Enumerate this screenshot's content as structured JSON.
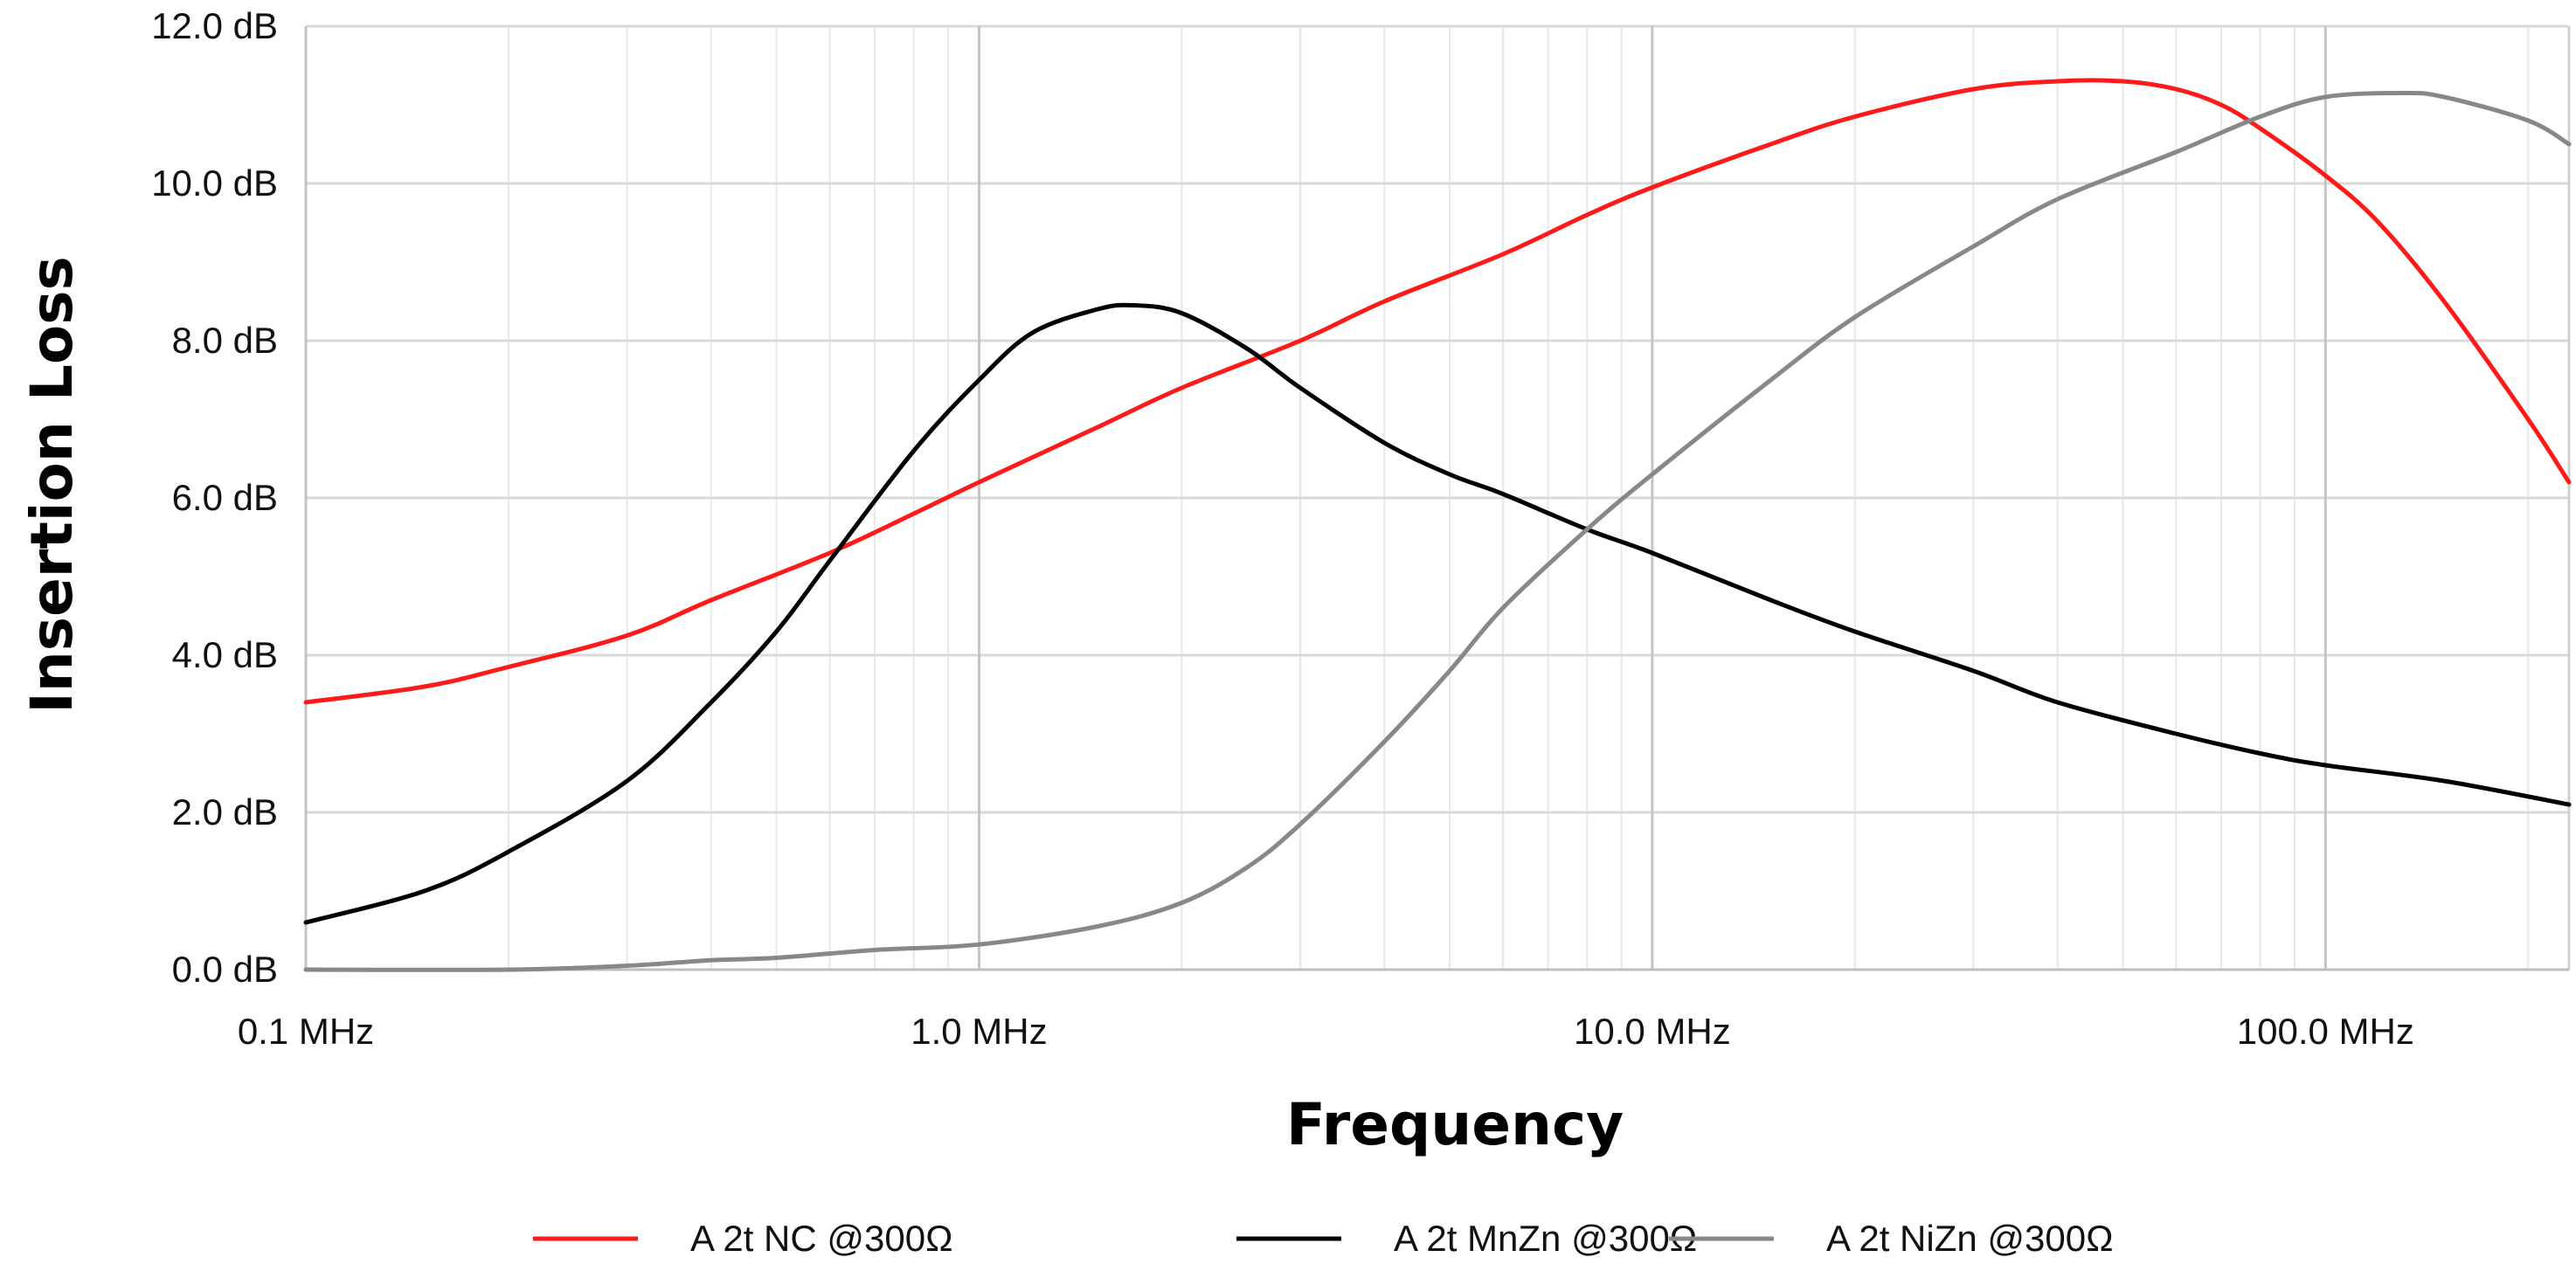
{
  "chart_data": {
    "type": "line",
    "title": "",
    "xlabel": "Frequency",
    "ylabel": "Insertion Loss",
    "x_scale": "log",
    "xlim": [
      0.1,
      230
    ],
    "ylim": [
      0,
      12
    ],
    "grid": true,
    "legend_position": "bottom",
    "x_ticks": [
      {
        "value": 0.1,
        "label": "0.1 MHz"
      },
      {
        "value": 1,
        "label": "1.0 MHz"
      },
      {
        "value": 10,
        "label": "10.0 MHz"
      },
      {
        "value": 100,
        "label": "100.0 MHz"
      }
    ],
    "y_ticks": [
      {
        "value": 0,
        "label": "0.0 dB"
      },
      {
        "value": 2,
        "label": "2.0 dB"
      },
      {
        "value": 4,
        "label": "4.0 dB"
      },
      {
        "value": 6,
        "label": "6.0 dB"
      },
      {
        "value": 8,
        "label": "8.0 dB"
      },
      {
        "value": 10,
        "label": "10.0 dB"
      },
      {
        "value": 12,
        "label": "12.0 dB"
      }
    ],
    "series": [
      {
        "name": "A 2t NC @300Ω",
        "color": "#ff1a1a",
        "points": [
          [
            0.1,
            3.4
          ],
          [
            0.15,
            3.6
          ],
          [
            0.2,
            3.85
          ],
          [
            0.3,
            4.25
          ],
          [
            0.4,
            4.7
          ],
          [
            0.6,
            5.3
          ],
          [
            0.8,
            5.8
          ],
          [
            1.0,
            6.2
          ],
          [
            1.5,
            6.9
          ],
          [
            2.0,
            7.4
          ],
          [
            3.0,
            8.0
          ],
          [
            4.0,
            8.5
          ],
          [
            6.0,
            9.1
          ],
          [
            8.0,
            9.6
          ],
          [
            10,
            9.95
          ],
          [
            15,
            10.5
          ],
          [
            20,
            10.85
          ],
          [
            30,
            11.2
          ],
          [
            40,
            11.3
          ],
          [
            50,
            11.3
          ],
          [
            60,
            11.2
          ],
          [
            70,
            11.0
          ],
          [
            80,
            10.7
          ],
          [
            100,
            10.1
          ],
          [
            120,
            9.5
          ],
          [
            150,
            8.5
          ],
          [
            200,
            7.0
          ],
          [
            230,
            6.2
          ]
        ]
      },
      {
        "name": "A 2t MnZn @300Ω",
        "color": "#000000",
        "points": [
          [
            0.1,
            0.6
          ],
          [
            0.15,
            1.0
          ],
          [
            0.2,
            1.5
          ],
          [
            0.3,
            2.4
          ],
          [
            0.4,
            3.4
          ],
          [
            0.5,
            4.3
          ],
          [
            0.6,
            5.2
          ],
          [
            0.8,
            6.6
          ],
          [
            1.0,
            7.5
          ],
          [
            1.2,
            8.1
          ],
          [
            1.5,
            8.4
          ],
          [
            1.7,
            8.45
          ],
          [
            2.0,
            8.35
          ],
          [
            2.5,
            7.9
          ],
          [
            3.0,
            7.4
          ],
          [
            4.0,
            6.7
          ],
          [
            5.0,
            6.3
          ],
          [
            6.0,
            6.05
          ],
          [
            8.0,
            5.6
          ],
          [
            10,
            5.3
          ],
          [
            15,
            4.7
          ],
          [
            20,
            4.3
          ],
          [
            30,
            3.8
          ],
          [
            40,
            3.4
          ],
          [
            60,
            3.0
          ],
          [
            80,
            2.75
          ],
          [
            100,
            2.6
          ],
          [
            150,
            2.4
          ],
          [
            230,
            2.1
          ]
        ]
      },
      {
        "name": "A 2t NiZn @300Ω",
        "color": "#888888",
        "points": [
          [
            0.1,
            0.0
          ],
          [
            0.2,
            0.0
          ],
          [
            0.3,
            0.05
          ],
          [
            0.4,
            0.12
          ],
          [
            0.5,
            0.15
          ],
          [
            0.7,
            0.25
          ],
          [
            1.0,
            0.32
          ],
          [
            1.5,
            0.55
          ],
          [
            2.0,
            0.85
          ],
          [
            2.5,
            1.3
          ],
          [
            3.0,
            1.85
          ],
          [
            4.0,
            2.9
          ],
          [
            5.0,
            3.8
          ],
          [
            6.0,
            4.6
          ],
          [
            8.0,
            5.6
          ],
          [
            10,
            6.3
          ],
          [
            15,
            7.5
          ],
          [
            20,
            8.3
          ],
          [
            30,
            9.2
          ],
          [
            40,
            9.8
          ],
          [
            60,
            10.4
          ],
          [
            80,
            10.85
          ],
          [
            100,
            11.1
          ],
          [
            130,
            11.15
          ],
          [
            150,
            11.1
          ],
          [
            200,
            10.8
          ],
          [
            230,
            10.5
          ]
        ]
      }
    ]
  }
}
